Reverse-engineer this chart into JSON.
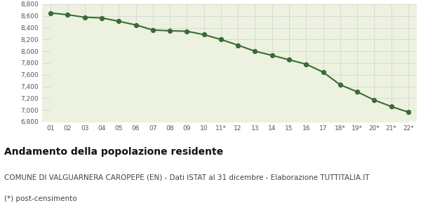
{
  "x_labels": [
    "01",
    "02",
    "03",
    "04",
    "05",
    "06",
    "07",
    "08",
    "09",
    "10",
    "11*",
    "12",
    "13",
    "14",
    "15",
    "16",
    "17",
    "18*",
    "19*",
    "20*",
    "21*",
    "22*"
  ],
  "y_values": [
    8651,
    8621,
    8578,
    8567,
    8510,
    8447,
    8362,
    8348,
    8340,
    8283,
    8200,
    8103,
    8000,
    7930,
    7855,
    7780,
    7645,
    7430,
    7310,
    7170,
    7060,
    6965
  ],
  "line_color": "#3a6b35",
  "fill_color": "#edf2e0",
  "marker_color": "#3a6b35",
  "bg_color": "#ffffff",
  "grid_color": "#d0d0d0",
  "ylim": [
    6800,
    8800
  ],
  "yticks": [
    6800,
    7000,
    7200,
    7400,
    7600,
    7800,
    8000,
    8200,
    8400,
    8600,
    8800
  ],
  "title": "Andamento della popolazione residente",
  "subtitle": "COMUNE DI VALGUARNERA CAROPEPE (EN) - Dati ISTAT al 31 dicembre - Elaborazione TUTTITALIA.IT",
  "footnote": "(*) post-censimento",
  "title_fontsize": 10,
  "subtitle_fontsize": 7.5,
  "footnote_fontsize": 7.5
}
